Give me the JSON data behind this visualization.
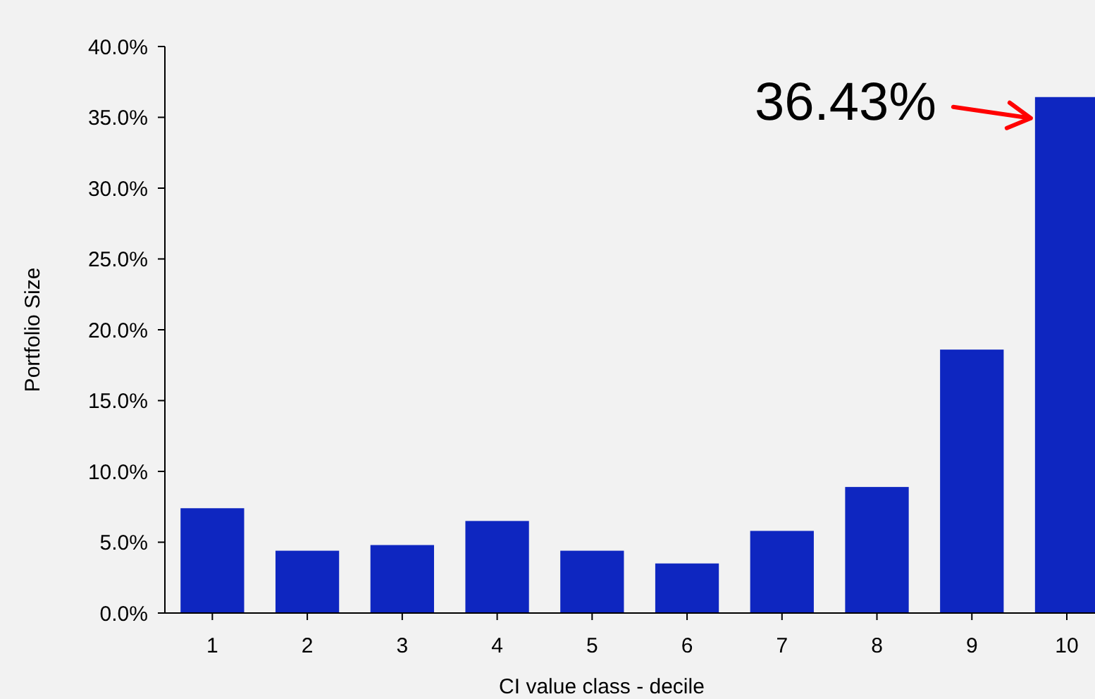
{
  "chart_data": {
    "type": "bar",
    "xlabel": "CI value class - decile",
    "ylabel": "Portfolio Size",
    "categories": [
      "1",
      "2",
      "3",
      "4",
      "5",
      "6",
      "7",
      "8",
      "9",
      "10"
    ],
    "values": [
      7.4,
      4.4,
      4.8,
      6.5,
      4.4,
      3.5,
      5.8,
      8.9,
      18.6,
      36.43
    ],
    "color": "#0e26c0",
    "ylim": [
      0,
      40
    ],
    "yticks": [
      {
        "value": 0,
        "label": "0.0%"
      },
      {
        "value": 5,
        "label": "5.0%"
      },
      {
        "value": 10,
        "label": "10.0%"
      },
      {
        "value": 15,
        "label": "15.0%"
      },
      {
        "value": 20,
        "label": "20.0%"
      },
      {
        "value": 25,
        "label": "25.0%"
      },
      {
        "value": 30,
        "label": "30.0%"
      },
      {
        "value": 35,
        "label": "35.0%"
      },
      {
        "value": 40,
        "label": "40.0%"
      }
    ],
    "annotations": [
      {
        "text": "36.43%",
        "x": "10",
        "y": 36.43
      }
    ]
  }
}
